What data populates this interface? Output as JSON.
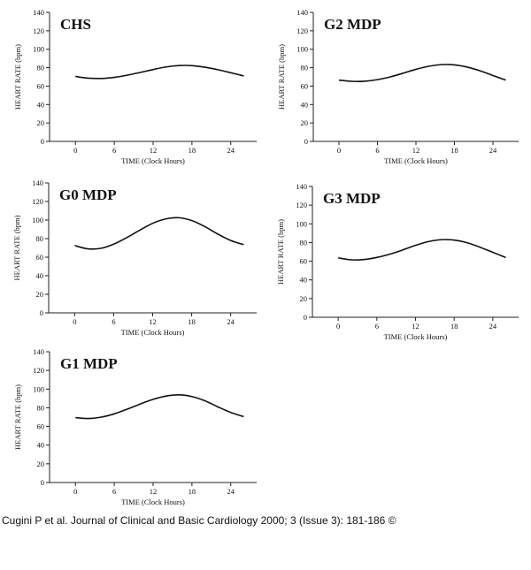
{
  "chart_data": [
    {
      "type": "line",
      "title": "CHS",
      "xlabel": "TIME (Clock Hours)",
      "ylabel": "HEART RATE (bpm)",
      "xlim": [
        -4,
        28
      ],
      "ylim": [
        0,
        140
      ],
      "xticks": [
        0,
        6,
        12,
        18,
        24
      ],
      "yticks": [
        0,
        20,
        40,
        60,
        80,
        100,
        120,
        140
      ],
      "grid": false,
      "series": [
        {
          "x": [
            0,
            2,
            4,
            6,
            8,
            10,
            12,
            14,
            16,
            18,
            20,
            22,
            24,
            26
          ],
          "values": [
            70.5,
            68.6,
            68.3,
            69.5,
            71.8,
            74.8,
            78.0,
            80.8,
            82.3,
            82.2,
            80.5,
            77.8,
            74.5,
            71.0
          ]
        }
      ]
    },
    {
      "type": "line",
      "title": "G2 MDP",
      "xlabel": "TIME (Clock Hours)",
      "ylabel": "HEART RATE (bpm)",
      "xlim": [
        -4,
        28
      ],
      "ylim": [
        0,
        140
      ],
      "xticks": [
        0,
        6,
        12,
        18,
        24
      ],
      "yticks": [
        0,
        20,
        40,
        60,
        80,
        100,
        120,
        140
      ],
      "grid": false,
      "series": [
        {
          "x": [
            0,
            2,
            4,
            6,
            8,
            10,
            12,
            14,
            16,
            18,
            20,
            22,
            24,
            26
          ],
          "values": [
            66.5,
            65.2,
            65.3,
            67.0,
            70.0,
            74.0,
            78.2,
            81.5,
            83.3,
            83.0,
            80.6,
            76.6,
            71.5,
            66.5
          ]
        }
      ]
    },
    {
      "type": "line",
      "title": "G0 MDP",
      "xlabel": "TIME (Clock Hours)",
      "ylabel": "HEART RATE (bpm)",
      "xlim": [
        -4,
        28
      ],
      "ylim": [
        0,
        140
      ],
      "xticks": [
        0,
        6,
        12,
        18,
        24
      ],
      "yticks": [
        0,
        20,
        40,
        60,
        80,
        100,
        120,
        140
      ],
      "grid": false,
      "series": [
        {
          "x": [
            0,
            2,
            4,
            6,
            8,
            10,
            12,
            14,
            16,
            18,
            20,
            22,
            24,
            26
          ],
          "values": [
            72.5,
            69.0,
            69.5,
            74.0,
            81.0,
            89.0,
            96.5,
            101.2,
            102.5,
            99.5,
            93.0,
            85.0,
            78.0,
            73.5
          ]
        }
      ]
    },
    {
      "type": "line",
      "title": "G3 MDP",
      "xlabel": "TIME (Clock Hours)",
      "ylabel": "HEART RATE (bpm)",
      "xlim": [
        -4,
        28
      ],
      "ylim": [
        0,
        140
      ],
      "xticks": [
        0,
        6,
        12,
        18,
        24
      ],
      "yticks": [
        0,
        20,
        40,
        60,
        80,
        100,
        120,
        140
      ],
      "grid": false,
      "series": [
        {
          "x": [
            0,
            2,
            4,
            6,
            8,
            10,
            12,
            14,
            16,
            18,
            20,
            22,
            24,
            26
          ],
          "values": [
            63.5,
            61.5,
            61.8,
            64.0,
            67.5,
            72.0,
            77.0,
            81.0,
            83.0,
            82.6,
            79.8,
            75.0,
            69.5,
            64.0
          ]
        }
      ]
    },
    {
      "type": "line",
      "title": "G1 MDP",
      "xlabel": "TIME (Clock Hours)",
      "ylabel": "HEART RATE (bpm)",
      "xlim": [
        -4,
        28
      ],
      "ylim": [
        0,
        140
      ],
      "xticks": [
        0,
        6,
        12,
        18,
        24
      ],
      "yticks": [
        0,
        20,
        40,
        60,
        80,
        100,
        120,
        140
      ],
      "grid": false,
      "series": [
        {
          "x": [
            0,
            2,
            4,
            6,
            8,
            10,
            12,
            14,
            16,
            18,
            20,
            22,
            24,
            26
          ],
          "values": [
            69.5,
            68.5,
            70.0,
            73.5,
            78.5,
            84.0,
            89.0,
            92.5,
            93.8,
            92.0,
            87.5,
            81.0,
            75.0,
            70.5
          ]
        }
      ]
    }
  ],
  "caption": "Cugini P et al. Journal of Clinical and Basic Cardiology 2000; 3 (Issue 3): 181-186 ©"
}
